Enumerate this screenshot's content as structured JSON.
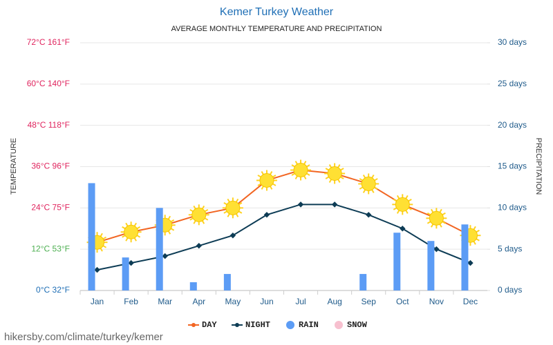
{
  "chart_data": {
    "type": "combo",
    "title": "Kemer Turkey Weather",
    "subtitle": "AVERAGE MONTHLY TEMPERATURE AND PRECIPITATION",
    "y_label": "TEMPERATURE",
    "y2_label": "PRECIPITATION",
    "source": "hikersby.com/climate/turkey/kemer",
    "categories": [
      "Jan",
      "Feb",
      "Mar",
      "Apr",
      "May",
      "Jun",
      "Jul",
      "Aug",
      "Sep",
      "Oct",
      "Nov",
      "Dec"
    ],
    "ylim": [
      0,
      72
    ],
    "yticks": [
      {
        "value": 0,
        "label": "0°C 32°F"
      },
      {
        "value": 12,
        "label": "12°C 53°F"
      },
      {
        "value": 24,
        "label": "24°C 75°F"
      },
      {
        "value": 36,
        "label": "36°C 96°F"
      },
      {
        "value": 48,
        "label": "48°C 118°F"
      },
      {
        "value": 60,
        "label": "60°C 140°F"
      },
      {
        "value": 72,
        "label": "72°C 161°F"
      }
    ],
    "ytick_colors": [
      "#1e6eb5",
      "#4caf50",
      "#e0245e",
      "#e0245e",
      "#e0245e",
      "#e0245e",
      "#e0245e"
    ],
    "y2lim": [
      0,
      30
    ],
    "y2ticks": [
      {
        "value": 0,
        "label": "0 days"
      },
      {
        "value": 5,
        "label": "5 days"
      },
      {
        "value": 10,
        "label": "10 days"
      },
      {
        "value": 15,
        "label": "15 days"
      },
      {
        "value": 20,
        "label": "20 days"
      },
      {
        "value": 25,
        "label": "25 days"
      },
      {
        "value": 30,
        "label": "30 days"
      }
    ],
    "grid": true,
    "series": [
      {
        "name": "DAY",
        "kind": "line",
        "color": "#f26522",
        "values": [
          14,
          17,
          19,
          22,
          24,
          32,
          35,
          34,
          31,
          25,
          21,
          16
        ]
      },
      {
        "name": "NIGHT",
        "kind": "line",
        "color": "#0d3c55",
        "values": [
          6,
          8,
          10,
          13,
          16,
          22,
          25,
          25,
          22,
          18,
          12,
          8
        ]
      },
      {
        "name": "RAIN",
        "kind": "bar",
        "axis": "y2",
        "color": "#5c9cf5",
        "values": [
          13,
          4,
          10,
          1,
          2,
          0,
          0,
          0,
          2,
          7,
          6,
          8
        ]
      },
      {
        "name": "SNOW",
        "kind": "bar",
        "axis": "y2",
        "color": "#f7c0cf",
        "values": [
          0,
          0,
          0,
          0,
          0,
          0,
          0,
          0,
          0,
          0,
          0,
          0
        ]
      }
    ]
  }
}
